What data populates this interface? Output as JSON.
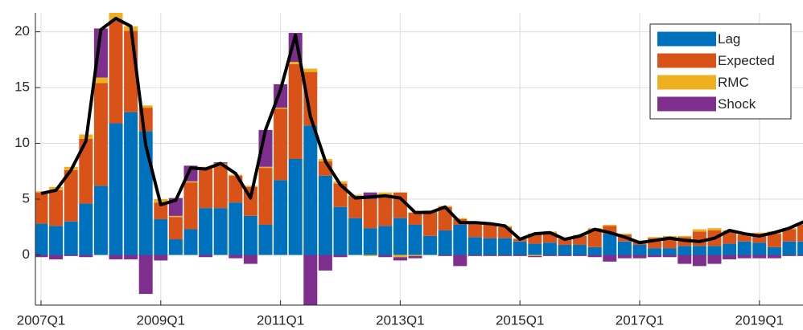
{
  "chart_data": {
    "type": "bar",
    "stacked": true,
    "categories": [
      "2007Q1",
      null,
      null,
      null,
      null,
      null,
      null,
      null,
      "2009Q1",
      null,
      null,
      null,
      null,
      null,
      null,
      null,
      "2011Q1",
      null,
      null,
      null,
      null,
      null,
      null,
      null,
      "2013Q1",
      null,
      null,
      null,
      null,
      null,
      null,
      null,
      "2015Q1",
      null,
      null,
      null,
      null,
      null,
      null,
      null,
      "2017Q1",
      null,
      null,
      null,
      null,
      null,
      null,
      null,
      "2019Q1",
      null,
      null,
      null
    ],
    "series": [
      {
        "name": "Lag",
        "color": "#0072bd",
        "values": [
          2.8,
          2.6,
          3.0,
          4.6,
          6.2,
          11.8,
          12.8,
          11.1,
          3.2,
          1.4,
          2.3,
          4.2,
          4.2,
          4.7,
          3.5,
          2.7,
          6.7,
          8.6,
          11.6,
          7.1,
          4.3,
          3.3,
          2.4,
          2.6,
          3.3,
          2.7,
          1.7,
          2.2,
          2.7,
          1.6,
          1.5,
          1.5,
          1.2,
          1.0,
          1.1,
          0.9,
          0.9,
          0.7,
          1.9,
          1.2,
          0.9,
          0.6,
          0.6,
          0.8,
          0.8,
          0.8,
          1.0,
          1.2,
          1.1,
          0.7,
          1.2,
          1.2
        ]
      },
      {
        "name": "Expected",
        "color": "#d95319",
        "values": [
          2.8,
          3.2,
          4.6,
          5.8,
          9.2,
          9.2,
          7.3,
          2.1,
          1.5,
          2.0,
          4.2,
          3.6,
          3.9,
          2.4,
          2.6,
          5.1,
          6.4,
          8.5,
          4.8,
          1.3,
          2.1,
          2.0,
          2.6,
          2.8,
          2.3,
          1.1,
          2.2,
          2.1,
          0.5,
          1.3,
          1.2,
          1.0,
          0.2,
          0.9,
          0.9,
          0.5,
          0.8,
          1.6,
          0.7,
          0.6,
          0.3,
          0.9,
          1.0,
          0.8,
          1.3,
          1.4,
          1.1,
          0.6,
          0.8,
          1.2,
          1.1,
          1.5
        ]
      },
      {
        "name": "RMC",
        "color": "#edb120",
        "values": [
          0.1,
          0.3,
          0.3,
          0.4,
          0.5,
          0.7,
          0.4,
          0.2,
          0.3,
          0.1,
          0.1,
          0.1,
          0.1,
          0.1,
          0.1,
          0.1,
          0.1,
          0.2,
          0.3,
          0.2,
          0.2,
          0.1,
          -0.1,
          0.2,
          -0.2,
          -0.1,
          0.1,
          0.1,
          0.1,
          0.1,
          0.1,
          0.1,
          0.1,
          -0.1,
          0.1,
          0.1,
          0.1,
          0.1,
          0.1,
          0.1,
          0.1,
          0.1,
          0.1,
          0.1,
          0.2,
          0.2,
          0.1,
          0.1,
          0.1,
          0.2,
          0.1,
          0.1
        ]
      },
      {
        "name": "Shock",
        "color": "#7e2f8e",
        "values": [
          -0.2,
          -0.4,
          -0.1,
          -0.2,
          4.4,
          -0.4,
          -0.4,
          -3.5,
          -0.5,
          1.6,
          1.4,
          -0.2,
          0.1,
          -0.3,
          -0.8,
          3.3,
          2.1,
          2.6,
          -4.5,
          -1.4,
          -0.2,
          0.0,
          0.6,
          -0.2,
          -0.3,
          -0.2,
          0.0,
          -0.1,
          -1.0,
          -0.1,
          -0.1,
          -0.1,
          -0.1,
          -0.1,
          -0.1,
          -0.1,
          -0.1,
          -0.2,
          -0.6,
          -0.3,
          -0.3,
          -0.2,
          -0.2,
          -0.8,
          -1.0,
          -0.8,
          -0.4,
          -0.3,
          -0.3,
          -0.3,
          -0.1,
          -0.1
        ]
      }
    ],
    "line": {
      "color": "#000000",
      "values": [
        5.5,
        5.8,
        7.6,
        10.2,
        20.2,
        21.2,
        20.5,
        9.8,
        4.5,
        4.9,
        7.8,
        7.7,
        8.2,
        7.3,
        5.1,
        11.2,
        14.8,
        19.7,
        12.4,
        8.4,
        6.3,
        5.1,
        5.2,
        5.3,
        5.1,
        3.8,
        3.8,
        4.3,
        2.9,
        2.9,
        2.8,
        2.6,
        1.4,
        1.9,
        2.0,
        1.4,
        1.7,
        2.3,
        2.0,
        1.6,
        1.1,
        1.3,
        1.5,
        1.3,
        1.2,
        1.5,
        2.2,
        1.9,
        1.7,
        2.0,
        2.4,
        3.0
      ]
    },
    "ylim": [
      -4.5,
      21.7
    ],
    "yticks": [
      0,
      5,
      10,
      15,
      20
    ],
    "grid": true,
    "legend": "upper right"
  }
}
